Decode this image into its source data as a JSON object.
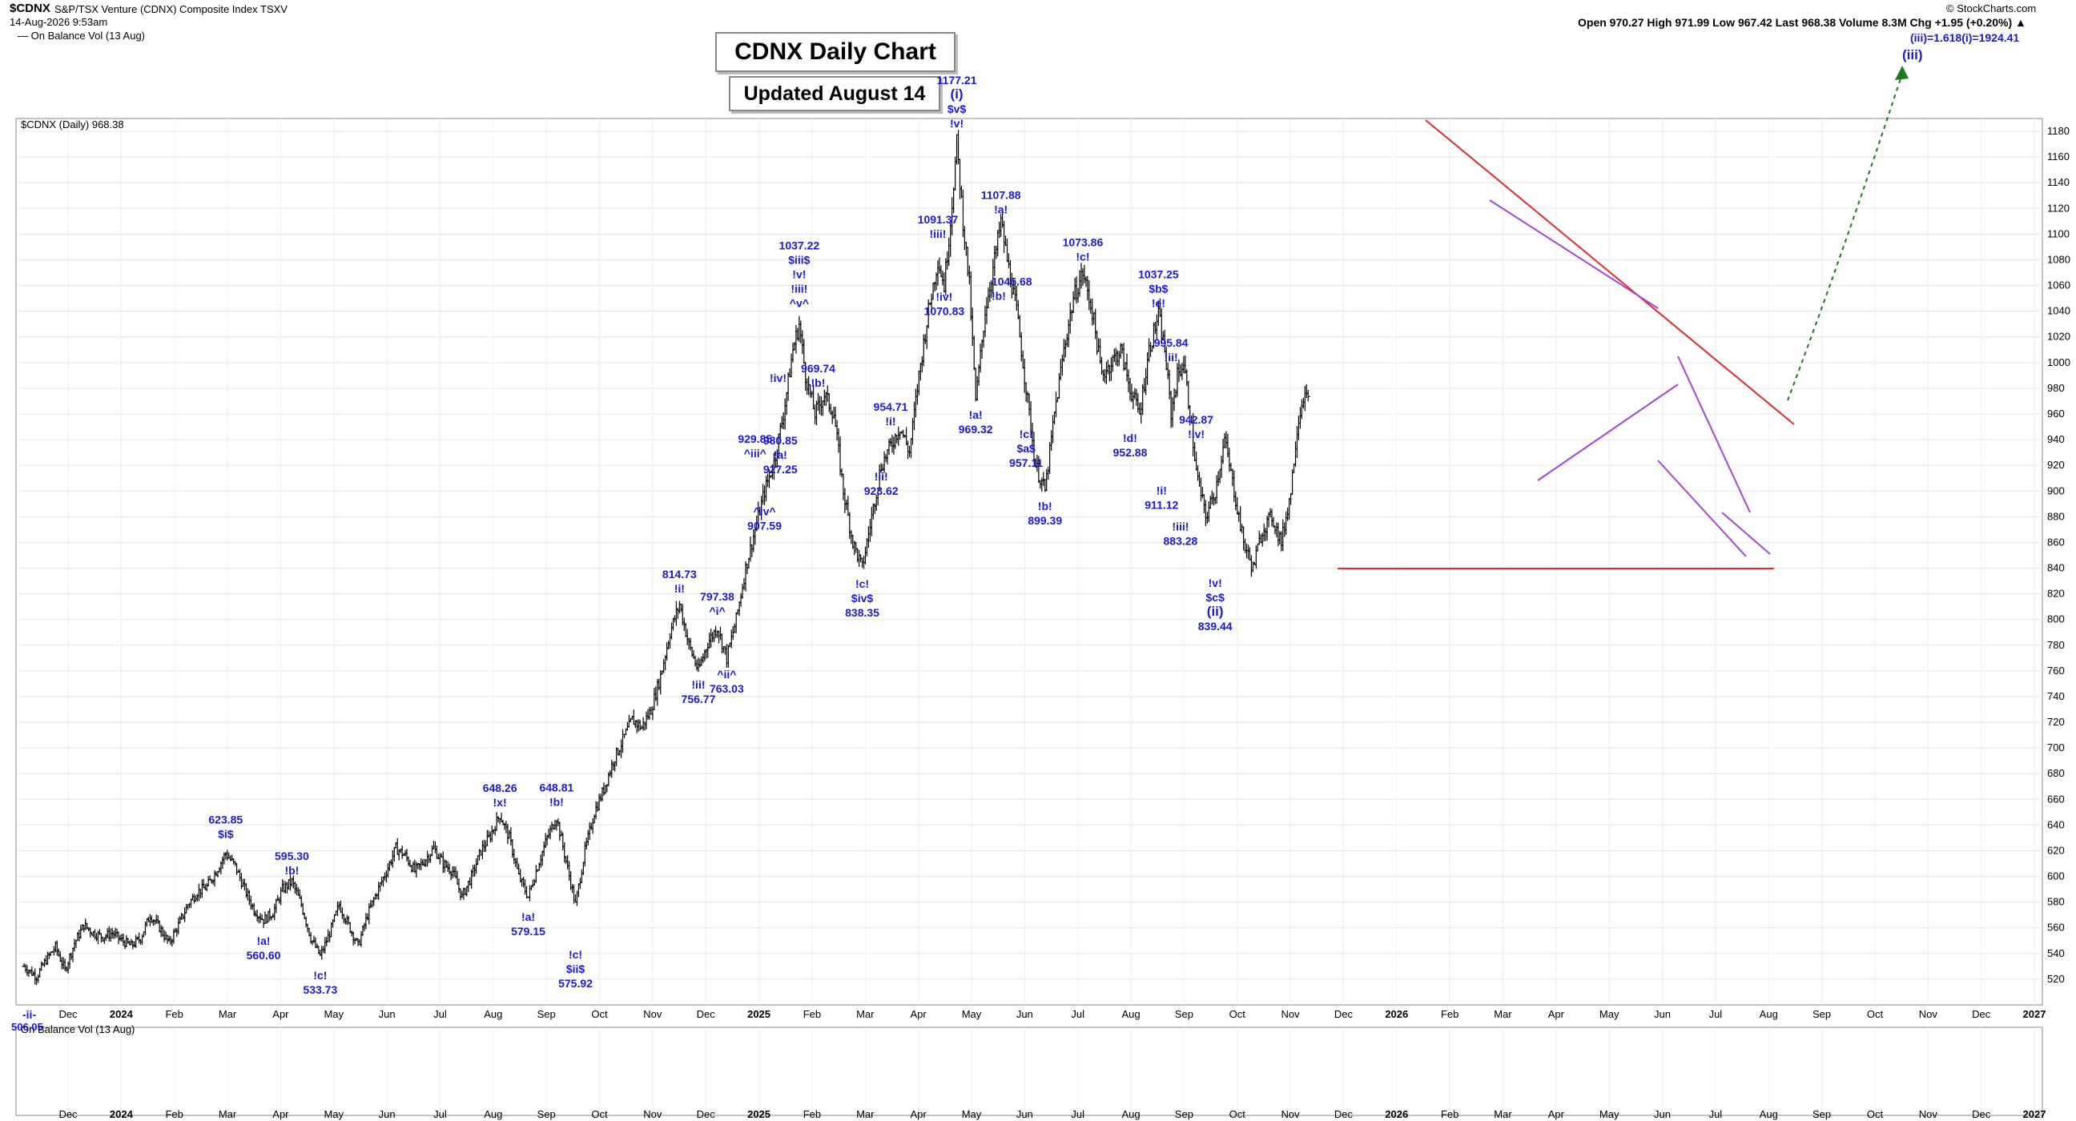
{
  "header": {
    "symbol": "$CDNX",
    "name": "S&P/TSX Venture (CDNX) Composite Index",
    "exchange": "TSXV",
    "timestamp": "14-Aug-2026 9:53am",
    "indicator_top": "On Balance Vol (13 Aug)",
    "copyright": "© StockCharts.com",
    "quote": "Open 970.27   High 971.99   Low 967.42   Last 968.38   Volume 8.3M   Chg +1.95 (+0.20%) ▲"
  },
  "title": "CDNX Daily Chart",
  "subtitle": "Updated August 14",
  "price_legend": "$CDNX (Daily) 968.38",
  "lower_legend": "On Balance Vol (13 Aug)",
  "lower_value": "506.05",
  "target_label": "(iii)=1.618(i)=1924.41",
  "target_wave": "(iii)",
  "colors": {
    "bars": "#000000",
    "red_line": "#e8262b",
    "purple_line": "#a545d9",
    "label": "#1a1ad6",
    "arrow": "#1e7a1e",
    "grid": "#e6e6e6"
  },
  "chart_data": {
    "type": "ohlc",
    "ylim": [
      500,
      1190
    ],
    "yticks": [
      520,
      540,
      560,
      580,
      600,
      620,
      640,
      660,
      680,
      700,
      720,
      740,
      760,
      780,
      800,
      820,
      840,
      860,
      880,
      900,
      920,
      940,
      960,
      980,
      1000,
      1020,
      1040,
      1060,
      1080,
      1100,
      1120,
      1140,
      1160,
      1180
    ],
    "xticks": [
      "Dec",
      "2024",
      "Feb",
      "Mar",
      "Apr",
      "May",
      "Jun",
      "Jul",
      "Aug",
      "Sep",
      "Oct",
      "Nov",
      "Dec",
      "2025",
      "Feb",
      "Mar",
      "Apr",
      "May",
      "Jun",
      "Jul",
      "Aug",
      "Sep",
      "Oct",
      "Nov",
      "Dec",
      "2026",
      "Feb",
      "Mar",
      "Apr",
      "May",
      "Jun",
      "Jul",
      "Aug",
      "Sep",
      "Oct",
      "Nov",
      "Dec",
      "2027"
    ],
    "bold_xticks": [
      "2024",
      "2025",
      "2026",
      "2027"
    ],
    "series_path": [
      [
        0,
        530
      ],
      [
        4,
        522
      ],
      [
        7,
        535
      ],
      [
        10,
        545
      ],
      [
        13,
        527
      ],
      [
        16,
        548
      ],
      [
        19,
        562
      ],
      [
        22,
        556
      ],
      [
        25,
        553
      ],
      [
        28,
        556
      ],
      [
        31,
        550
      ],
      [
        34,
        546
      ],
      [
        37,
        552
      ],
      [
        40,
        570
      ],
      [
        43,
        560
      ],
      [
        46,
        548
      ],
      [
        49,
        562
      ],
      [
        52,
        578
      ],
      [
        55,
        588
      ],
      [
        58,
        592
      ],
      [
        61,
        604
      ],
      [
        64,
        618
      ],
      [
        67,
        608
      ],
      [
        70,
        590
      ],
      [
        73,
        574
      ],
      [
        76,
        566
      ],
      [
        79,
        572
      ],
      [
        82,
        590
      ],
      [
        85,
        596
      ],
      [
        88,
        578
      ],
      [
        91,
        552
      ],
      [
        94,
        538
      ],
      [
        97,
        556
      ],
      [
        100,
        578
      ],
      [
        103,
        562
      ],
      [
        106,
        546
      ],
      [
        109,
        570
      ],
      [
        112,
        588
      ],
      [
        115,
        604
      ],
      [
        118,
        622
      ],
      [
        121,
        616
      ],
      [
        124,
        604
      ],
      [
        127,
        612
      ],
      [
        130,
        622
      ],
      [
        133,
        610
      ],
      [
        136,
        604
      ],
      [
        139,
        584
      ],
      [
        142,
        600
      ],
      [
        145,
        620
      ],
      [
        148,
        632
      ],
      [
        151,
        648
      ],
      [
        154,
        630
      ],
      [
        157,
        600
      ],
      [
        160,
        584
      ],
      [
        163,
        608
      ],
      [
        166,
        630
      ],
      [
        169,
        646
      ],
      [
        172,
        612
      ],
      [
        175,
        578
      ],
      [
        178,
        620
      ],
      [
        181,
        650
      ],
      [
        184,
        668
      ],
      [
        187,
        690
      ],
      [
        190,
        706
      ],
      [
        193,
        722
      ],
      [
        196,
        716
      ],
      [
        199,
        730
      ],
      [
        202,
        756
      ],
      [
        205,
        790
      ],
      [
        208,
        812
      ],
      [
        211,
        780
      ],
      [
        214,
        760
      ],
      [
        217,
        782
      ],
      [
        220,
        794
      ],
      [
        223,
        770
      ],
      [
        226,
        800
      ],
      [
        229,
        840
      ],
      [
        232,
        870
      ],
      [
        235,
        900
      ],
      [
        238,
        922
      ],
      [
        241,
        960
      ],
      [
        244,
        1010
      ],
      [
        246,
        1030
      ],
      [
        248,
        990
      ],
      [
        251,
        960
      ],
      [
        254,
        975
      ],
      [
        257,
        960
      ],
      [
        260,
        900
      ],
      [
        263,
        860
      ],
      [
        266,
        840
      ],
      [
        269,
        880
      ],
      [
        272,
        920
      ],
      [
        275,
        935
      ],
      [
        278,
        950
      ],
      [
        281,
        930
      ],
      [
        284,
        990
      ],
      [
        287,
        1040
      ],
      [
        290,
        1080
      ],
      [
        292,
        1060
      ],
      [
        294,
        1110
      ],
      [
        296,
        1170
      ],
      [
        298,
        1110
      ],
      [
        300,
        1060
      ],
      [
        302,
        970
      ],
      [
        305,
        1040
      ],
      [
        308,
        1080
      ],
      [
        310,
        1110
      ],
      [
        312,
        1080
      ],
      [
        315,
        1040
      ],
      [
        318,
        980
      ],
      [
        321,
        920
      ],
      [
        324,
        900
      ],
      [
        327,
        960
      ],
      [
        330,
        1010
      ],
      [
        333,
        1050
      ],
      [
        336,
        1070
      ],
      [
        339,
        1040
      ],
      [
        342,
        990
      ],
      [
        345,
        1000
      ],
      [
        348,
        1010
      ],
      [
        351,
        980
      ],
      [
        354,
        960
      ],
      [
        357,
        1010
      ],
      [
        360,
        1037
      ],
      [
        362,
        1010
      ],
      [
        364,
        960
      ],
      [
        366,
        990
      ],
      [
        368,
        1000
      ],
      [
        370,
        960
      ],
      [
        372,
        915
      ],
      [
        375,
        880
      ],
      [
        378,
        900
      ],
      [
        381,
        940
      ],
      [
        384,
        900
      ],
      [
        387,
        860
      ],
      [
        390,
        840
      ],
      [
        393,
        870
      ],
      [
        396,
        880
      ],
      [
        399,
        860
      ],
      [
        402,
        900
      ],
      [
        404,
        950
      ],
      [
        406,
        975
      ],
      [
        408,
        968
      ]
    ],
    "wave_labels": [
      {
        "v": "623.85|$i$",
        "x": 64,
        "y": 623.85,
        "pos": "above"
      },
      {
        "v": "!a!|560.60",
        "x": 76,
        "y": 560.6,
        "pos": "below"
      },
      {
        "v": "595.30|!b!",
        "x": 85,
        "y": 595.3,
        "pos": "above"
      },
      {
        "v": "!c!|533.73",
        "x": 94,
        "y": 533.73,
        "pos": "below"
      },
      {
        "v": "648.26|!x!",
        "x": 151,
        "y": 648.26,
        "pos": "above"
      },
      {
        "v": "!a!|579.15",
        "x": 160,
        "y": 579.15,
        "pos": "below"
      },
      {
        "v": "648.81|!b!",
        "x": 169,
        "y": 648.81,
        "pos": "above"
      },
      {
        "v": "!c!|$ii$|575.92",
        "x": 175,
        "y": 550,
        "pos": "below"
      },
      {
        "v": "814.73|!i!",
        "x": 208,
        "y": 814.73,
        "pos": "above"
      },
      {
        "v": "!ii!|756.77",
        "x": 214,
        "y": 760,
        "pos": "below"
      },
      {
        "v": "797.38|^i^",
        "x": 220,
        "y": 797.38,
        "pos": "above"
      },
      {
        "v": "^ii^|763.03",
        "x": 223,
        "y": 768,
        "pos": "below"
      },
      {
        "v": "929.85|^iii^",
        "x": 232,
        "y": 920,
        "pos": "above"
      },
      {
        "v": "^iv^|907.59",
        "x": 235,
        "y": 895,
        "pos": "below"
      },
      {
        "v": "980.85|!a!|927.25",
        "x": 240,
        "y": 950,
        "pos": "below"
      },
      {
        "v": "1037.22|$iii$|!v!|!iii!|^v^",
        "x": 246,
        "y": 1037,
        "pos": "above"
      },
      {
        "v": "!iv!",
        "x": 244,
        "y": 985,
        "pos": "left"
      },
      {
        "v": "969.74|!b!",
        "x": 252,
        "y": 975,
        "pos": "above"
      },
      {
        "v": "!c!|$iv$|838.35",
        "x": 266,
        "y": 838.35,
        "pos": "below"
      },
      {
        "v": "954.71|!i!",
        "x": 275,
        "y": 945,
        "pos": "above"
      },
      {
        "v": "!ii!|923.62",
        "x": 272,
        "y": 922,
        "pos": "below"
      },
      {
        "v": "1091.37|!iii!",
        "x": 290,
        "y": 1091,
        "pos": "above"
      },
      {
        "v": "!iv!|1070.83",
        "x": 292,
        "y": 1062,
        "pos": "below"
      },
      {
        "v": "1177.21|(i)|$v$|!v!",
        "x": 296,
        "y": 1177,
        "pos": "above"
      },
      {
        "v": "1045.68|!b!",
        "x": 305,
        "y": 1060,
        "pos": "right"
      },
      {
        "v": "!a!|969.32",
        "x": 302,
        "y": 970,
        "pos": "below"
      },
      {
        "v": "1107.88|!a!",
        "x": 310,
        "y": 1110,
        "pos": "above"
      },
      {
        "v": "!c!|$a$|957.11",
        "x": 318,
        "y": 955,
        "pos": "below"
      },
      {
        "v": "!b!|899.39",
        "x": 324,
        "y": 899,
        "pos": "below"
      },
      {
        "v": "1073.86|!c!",
        "x": 336,
        "y": 1073,
        "pos": "above"
      },
      {
        "v": "!d!|952.88",
        "x": 351,
        "y": 952,
        "pos": "below"
      },
      {
        "v": "1037.25|$b$|!e!",
        "x": 360,
        "y": 1037,
        "pos": "above"
      },
      {
        "v": "995.84|!ii!",
        "x": 364,
        "y": 995,
        "pos": "above"
      },
      {
        "v": "!i!|911.12",
        "x": 361,
        "y": 911,
        "pos": "below"
      },
      {
        "v": "942.87|!iv!",
        "x": 372,
        "y": 935,
        "pos": "above"
      },
      {
        "v": "!iii!|883.28",
        "x": 367,
        "y": 883,
        "pos": "below"
      },
      {
        "v": "!v!|$c$|(ii)|839.44",
        "x": 378,
        "y": 839,
        "pos": "below"
      }
    ]
  }
}
